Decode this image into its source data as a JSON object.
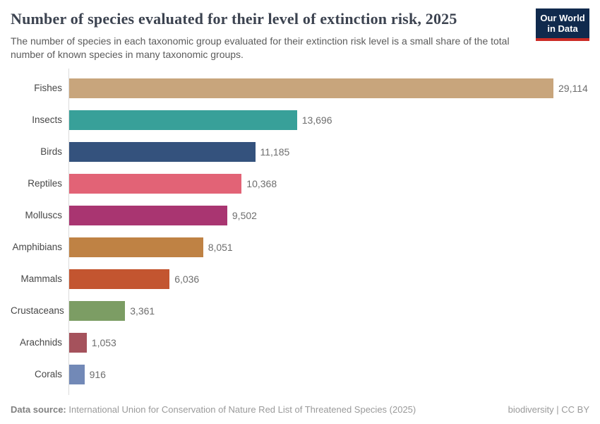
{
  "header": {
    "title": "Number of species evaluated for their level of extinction risk, 2025",
    "subtitle": "The number of species in each taxonomic group evaluated for their extinction risk level is a small share of the total number of known species in many taxonomic groups.",
    "logo": {
      "line1": "Our World",
      "line2": "in Data",
      "bg_color": "#102a4d",
      "stripe_color": "#cb2b25"
    }
  },
  "chart_data": {
    "type": "bar",
    "orientation": "horizontal",
    "title": "Number of species evaluated for their level of extinction risk, 2025",
    "categories": [
      "Fishes",
      "Insects",
      "Birds",
      "Reptiles",
      "Molluscs",
      "Amphibians",
      "Mammals",
      "Crustaceans",
      "Arachnids",
      "Corals"
    ],
    "values": [
      29114,
      13696,
      11185,
      10368,
      9502,
      8051,
      6036,
      3361,
      1053,
      916
    ],
    "value_labels": [
      "29,114",
      "13,696",
      "11,185",
      "10,368",
      "9,502",
      "8,051",
      "6,036",
      "3,361",
      "1,053",
      "916"
    ],
    "colors": [
      "#c8a57c",
      "#38a099",
      "#34527d",
      "#e26376",
      "#a93571",
      "#bf8244",
      "#c35530",
      "#7c9d64",
      "#a5525c",
      "#7289b7"
    ],
    "xlabel": "",
    "ylabel": "",
    "xlim": [
      0,
      29114
    ],
    "grid": false,
    "legend": false
  },
  "footer": {
    "datasource_label": "Data source:",
    "datasource_text": " International Union for Conservation of Nature Red List of Threatened Species (2025)",
    "credit": "biodiversity | CC BY"
  }
}
